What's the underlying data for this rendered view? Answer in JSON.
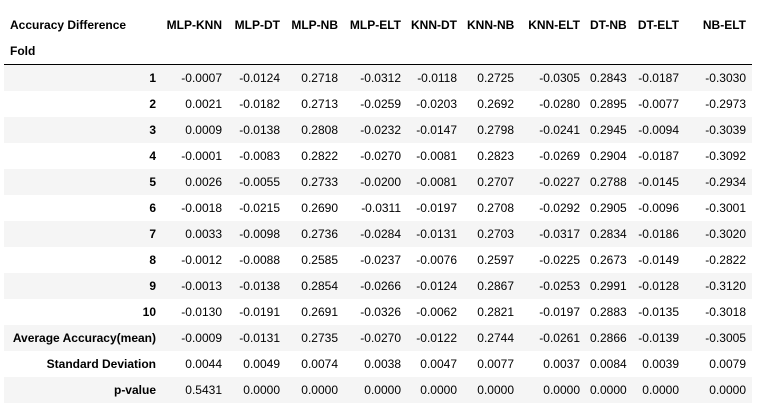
{
  "table": {
    "corner_label": "Accuracy Difference",
    "index_label": "Fold",
    "columns": [
      "MLP-KNN",
      "MLP-DT",
      "MLP-NB",
      "MLP-ELT",
      "KNN-DT",
      "KNN-NB",
      "KNN-ELT",
      "DT-NB",
      "DT-ELT",
      "NB-ELT"
    ],
    "rows": [
      {
        "label": "1",
        "values": [
          "-0.0007",
          "-0.0124",
          "0.2718",
          "-0.0312",
          "-0.0118",
          "0.2725",
          "-0.0305",
          "0.2843",
          "-0.0187",
          "-0.3030"
        ]
      },
      {
        "label": "2",
        "values": [
          "0.0021",
          "-0.0182",
          "0.2713",
          "-0.0259",
          "-0.0203",
          "0.2692",
          "-0.0280",
          "0.2895",
          "-0.0077",
          "-0.2973"
        ]
      },
      {
        "label": "3",
        "values": [
          "0.0009",
          "-0.0138",
          "0.2808",
          "-0.0232",
          "-0.0147",
          "0.2798",
          "-0.0241",
          "0.2945",
          "-0.0094",
          "-0.3039"
        ]
      },
      {
        "label": "4",
        "values": [
          "-0.0001",
          "-0.0083",
          "0.2822",
          "-0.0270",
          "-0.0081",
          "0.2823",
          "-0.0269",
          "0.2904",
          "-0.0187",
          "-0.3092"
        ]
      },
      {
        "label": "5",
        "values": [
          "0.0026",
          "-0.0055",
          "0.2733",
          "-0.0200",
          "-0.0081",
          "0.2707",
          "-0.0227",
          "0.2788",
          "-0.0145",
          "-0.2934"
        ]
      },
      {
        "label": "6",
        "values": [
          "-0.0018",
          "-0.0215",
          "0.2690",
          "-0.0311",
          "-0.0197",
          "0.2708",
          "-0.0292",
          "0.2905",
          "-0.0096",
          "-0.3001"
        ]
      },
      {
        "label": "7",
        "values": [
          "0.0033",
          "-0.0098",
          "0.2736",
          "-0.0284",
          "-0.0131",
          "0.2703",
          "-0.0317",
          "0.2834",
          "-0.0186",
          "-0.3020"
        ]
      },
      {
        "label": "8",
        "values": [
          "-0.0012",
          "-0.0088",
          "0.2585",
          "-0.0237",
          "-0.0076",
          "0.2597",
          "-0.0225",
          "0.2673",
          "-0.0149",
          "-0.2822"
        ]
      },
      {
        "label": "9",
        "values": [
          "-0.0013",
          "-0.0138",
          "0.2854",
          "-0.0266",
          "-0.0124",
          "0.2867",
          "-0.0253",
          "0.2991",
          "-0.0128",
          "-0.3120"
        ]
      },
      {
        "label": "10",
        "values": [
          "-0.0130",
          "-0.0191",
          "0.2691",
          "-0.0326",
          "-0.0062",
          "0.2821",
          "-0.0197",
          "0.2883",
          "-0.0135",
          "-0.3018"
        ]
      },
      {
        "label": "Average Accuracy(mean)",
        "values": [
          "-0.0009",
          "-0.0131",
          "0.2735",
          "-0.0270",
          "-0.0122",
          "0.2744",
          "-0.0261",
          "0.2866",
          "-0.0139",
          "-0.3005"
        ]
      },
      {
        "label": "Standard Deviation",
        "values": [
          "0.0044",
          "0.0049",
          "0.0074",
          "0.0038",
          "0.0047",
          "0.0077",
          "0.0037",
          "0.0084",
          "0.0039",
          "0.0079"
        ]
      },
      {
        "label": "p-value",
        "values": [
          "0.5431",
          "0.0000",
          "0.0000",
          "0.0000",
          "0.0000",
          "0.0000",
          "0.0000",
          "0.0000",
          "0.0000",
          "0.0000"
        ]
      }
    ]
  }
}
